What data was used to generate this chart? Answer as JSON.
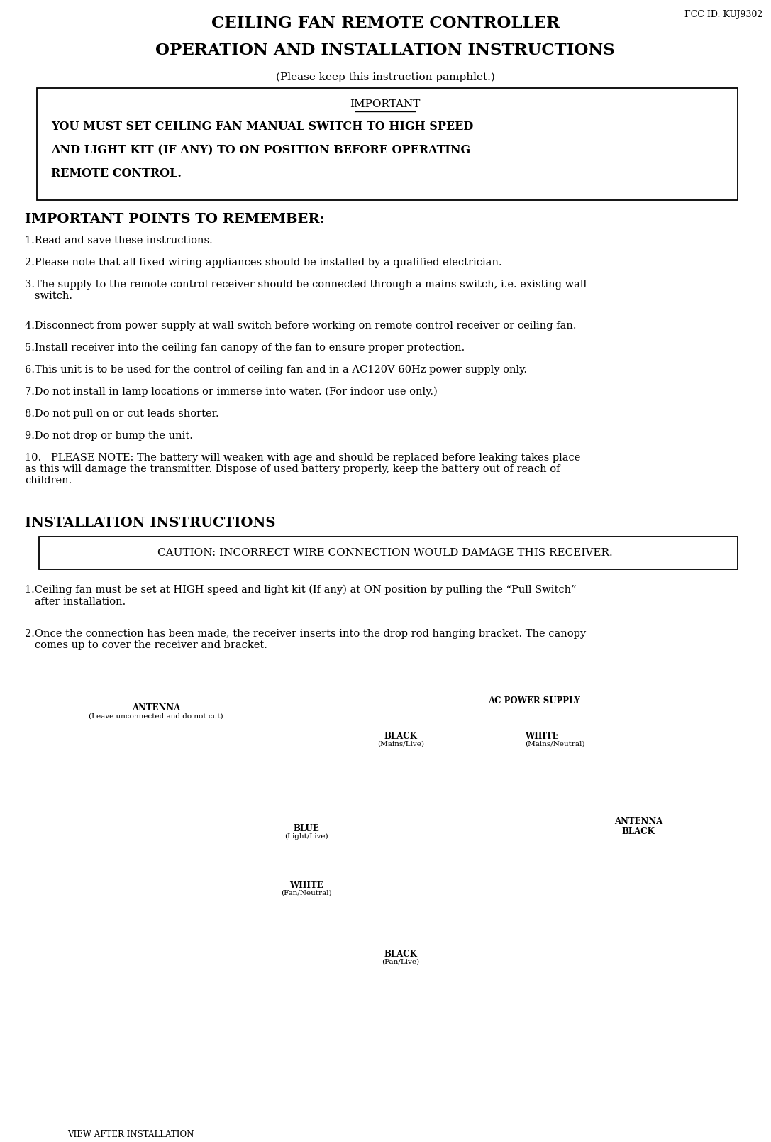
{
  "fcc_id": "FCC ID. KUJ9302",
  "title_line1": "CEILING FAN REMOTE CONTROLLER",
  "title_line2": "OPERATION AND INSTALLATION INSTRUCTIONS",
  "subtitle": "(Please keep this instruction pamphlet.)",
  "important_box_header": "IMPORTANT",
  "important_box_lines": [
    "YOU MUST SET CEILING FAN MANUAL SWITCH TO HIGH SPEED",
    "AND LIGHT KIT (IF ANY) TO ON POSITION BEFORE OPERATING",
    "REMOTE CONTROL."
  ],
  "section1_header": "IMPORTANT POINTS TO REMEMBER:",
  "points": [
    {
      "text": "1.Read and save these instructions.",
      "extra_lines": 0
    },
    {
      "text": "2.Please note that all fixed wiring appliances should be installed by a qualified electrician.",
      "extra_lines": 0
    },
    {
      "text": "3.The supply to the remote control receiver should be connected through a mains switch, i.e. existing wall\n   switch.",
      "extra_lines": 1
    },
    {
      "text": "4.Disconnect from power supply at wall switch before working on remote control receiver or ceiling fan.",
      "extra_lines": 0
    },
    {
      "text": "5.Install receiver into the ceiling fan canopy of the fan to ensure proper protection.",
      "extra_lines": 0
    },
    {
      "text": "6.This unit is to be used for the control of ceiling fan and in a AC120V 60Hz power supply only.",
      "extra_lines": 0
    },
    {
      "text": "7.Do not install in lamp locations or immerse into water. (For indoor use only.)",
      "extra_lines": 0
    },
    {
      "text": "8.Do not pull on or cut leads shorter.",
      "extra_lines": 0
    },
    {
      "text": "9.Do not drop or bump the unit.",
      "extra_lines": 0
    },
    {
      "text": "10.   PLEASE NOTE: The battery will weaken with age and should be replaced before leaking takes place\nas this will damage the transmitter. Dispose of used battery properly, keep the battery out of reach of\nchildren.",
      "extra_lines": 2
    }
  ],
  "section2_header": "INSTALLATION INSTRUCTIONS",
  "caution_text": "CAUTION: INCORRECT WIRE CONNECTION WOULD DAMAGE THIS RECEIVER.",
  "install_points": [
    {
      "text": "1.Ceiling fan must be set at HIGH speed and light kit (If any) at ON position by pulling the “Pull Switch”\n   after installation.",
      "extra_lines": 1
    },
    {
      "text": "2.Once the connection has been made, the receiver inserts into the drop rod hanging bracket. The canopy\n   comes up to cover the receiver and bracket.",
      "extra_lines": 1
    }
  ],
  "bg_color": "#ffffff",
  "text_color": "#000000"
}
